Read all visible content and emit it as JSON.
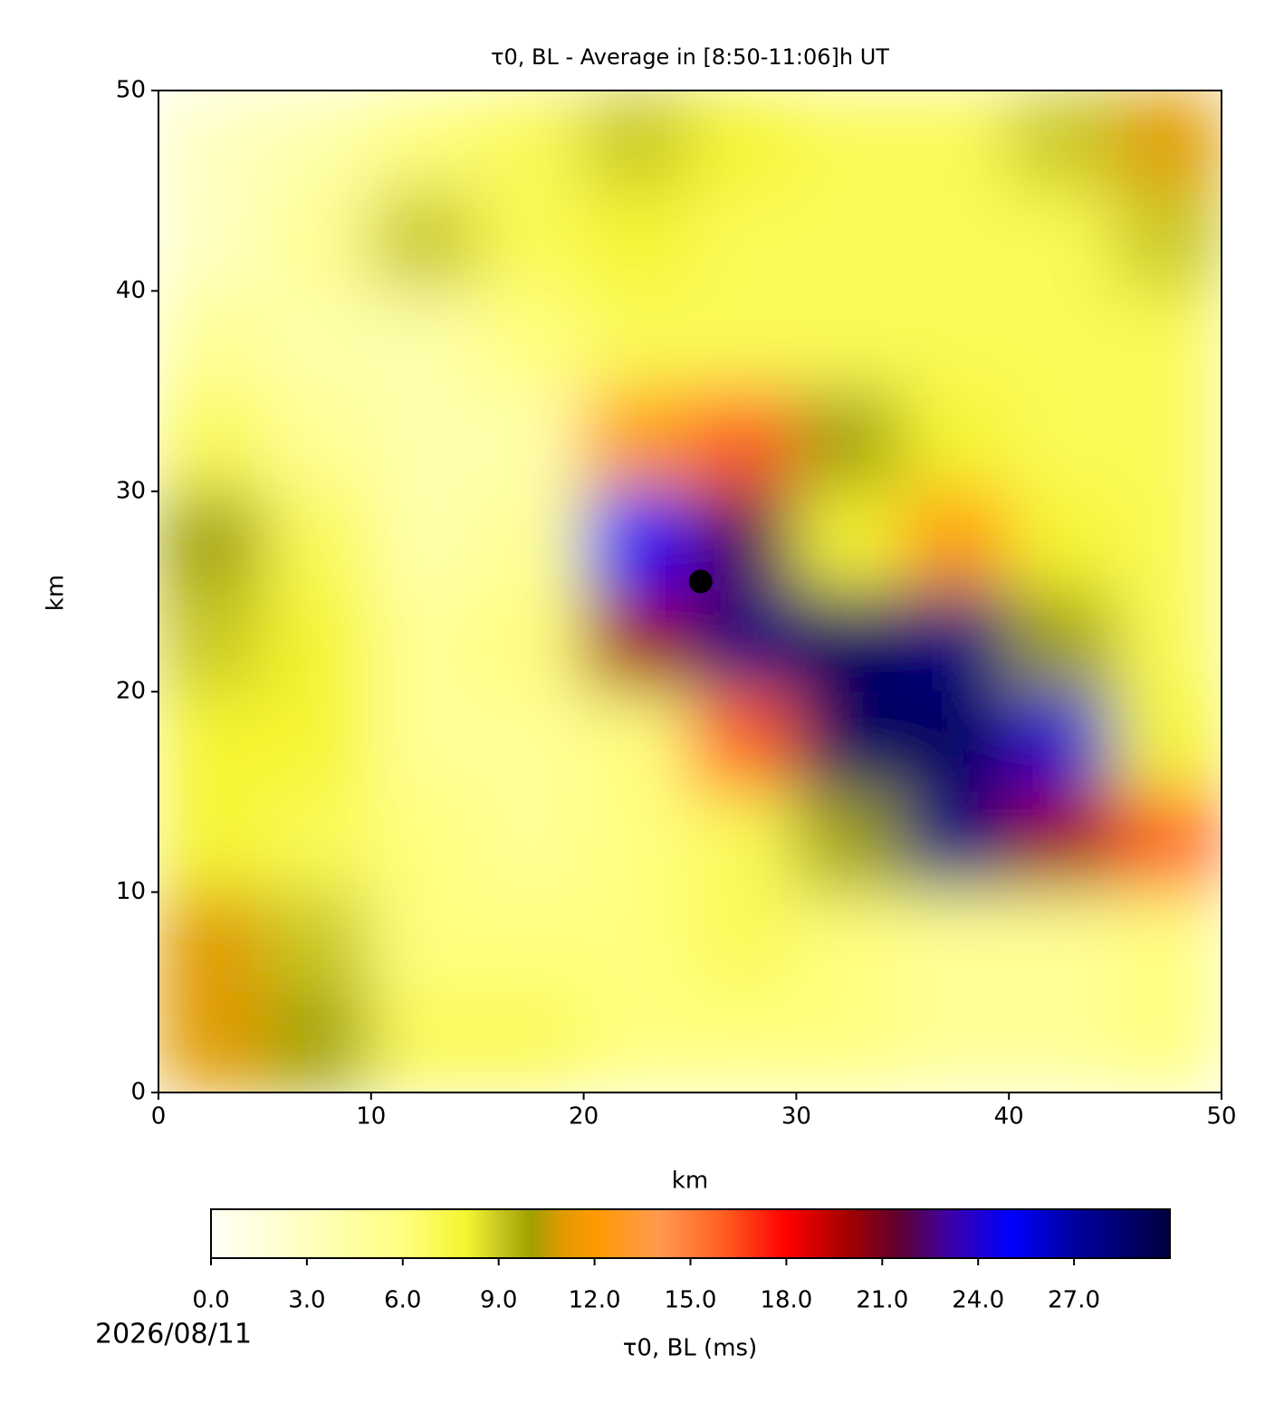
{
  "chart_data": {
    "type": "heatmap",
    "title": "τ0, BL - Average in [8:50-11:06]h UT",
    "xlabel": "km",
    "ylabel": "km",
    "xlim": [
      0,
      50
    ],
    "ylim": [
      0,
      50
    ],
    "xticks": [
      0,
      10,
      20,
      30,
      40,
      50
    ],
    "yticks": [
      0,
      10,
      20,
      30,
      40,
      50
    ],
    "x": [
      2.5,
      7.5,
      12.5,
      17.5,
      22.5,
      27.5,
      32.5,
      37.5,
      42.5,
      47.5
    ],
    "y": [
      47.5,
      42.5,
      37.5,
      32.5,
      27.5,
      22.5,
      17.5,
      12.5,
      7.5,
      2.5
    ],
    "z": [
      [
        3,
        4,
        6,
        7,
        9,
        8,
        7,
        7,
        9,
        11
      ],
      [
        3,
        5,
        9,
        7,
        8,
        7,
        7,
        7,
        7,
        9
      ],
      [
        5,
        4,
        4,
        6,
        7,
        7,
        7,
        7,
        7,
        7
      ],
      [
        7,
        5,
        4,
        4,
        12,
        16,
        10,
        8,
        7,
        7
      ],
      [
        10,
        7,
        4,
        5,
        25,
        22,
        8,
        12,
        8,
        7
      ],
      [
        9,
        8,
        5,
        6,
        20,
        28,
        29,
        28,
        10,
        7
      ],
      [
        8,
        8,
        5,
        5,
        6,
        16,
        29,
        29,
        24,
        8
      ],
      [
        8,
        7,
        6,
        5,
        6,
        7,
        10,
        28,
        20,
        16
      ],
      [
        11,
        9,
        6,
        6,
        6,
        7,
        6,
        5,
        5,
        6
      ],
      [
        11,
        10,
        7,
        7,
        6,
        6,
        6,
        5,
        5,
        6
      ]
    ],
    "marker": {
      "x": 25.5,
      "y": 25.5,
      "color": "#000000"
    },
    "colorbar": {
      "label": "τ0, BL (ms)",
      "lim": [
        0,
        30
      ],
      "ticks": [
        {
          "value": 0,
          "label": "0.0"
        },
        {
          "value": 3,
          "label": "3.0"
        },
        {
          "value": 6,
          "label": "6.0"
        },
        {
          "value": 9,
          "label": "9.0"
        },
        {
          "value": 12,
          "label": "12.0"
        },
        {
          "value": 15,
          "label": "15.0"
        },
        {
          "value": 18,
          "label": "18.0"
        },
        {
          "value": 21,
          "label": "21.0"
        },
        {
          "value": 24,
          "label": "24.0"
        },
        {
          "value": 27,
          "label": "27.0"
        }
      ],
      "colormap": [
        [
          0,
          "#fffff5"
        ],
        [
          3,
          "#ffffc0"
        ],
        [
          6,
          "#ffff80"
        ],
        [
          8,
          "#f5f530"
        ],
        [
          9,
          "#c8c820"
        ],
        [
          10,
          "#a0a000"
        ],
        [
          11,
          "#e09a00"
        ],
        [
          12,
          "#ff9a00"
        ],
        [
          14,
          "#ff9a50"
        ],
        [
          16,
          "#ff6020"
        ],
        [
          18,
          "#ff0000"
        ],
        [
          20,
          "#a00000"
        ],
        [
          21.5,
          "#600030"
        ],
        [
          23,
          "#4000a0"
        ],
        [
          25,
          "#0000ff"
        ],
        [
          27,
          "#0000a0"
        ],
        [
          30,
          "#000040"
        ]
      ]
    },
    "date": "2026/08/11"
  }
}
